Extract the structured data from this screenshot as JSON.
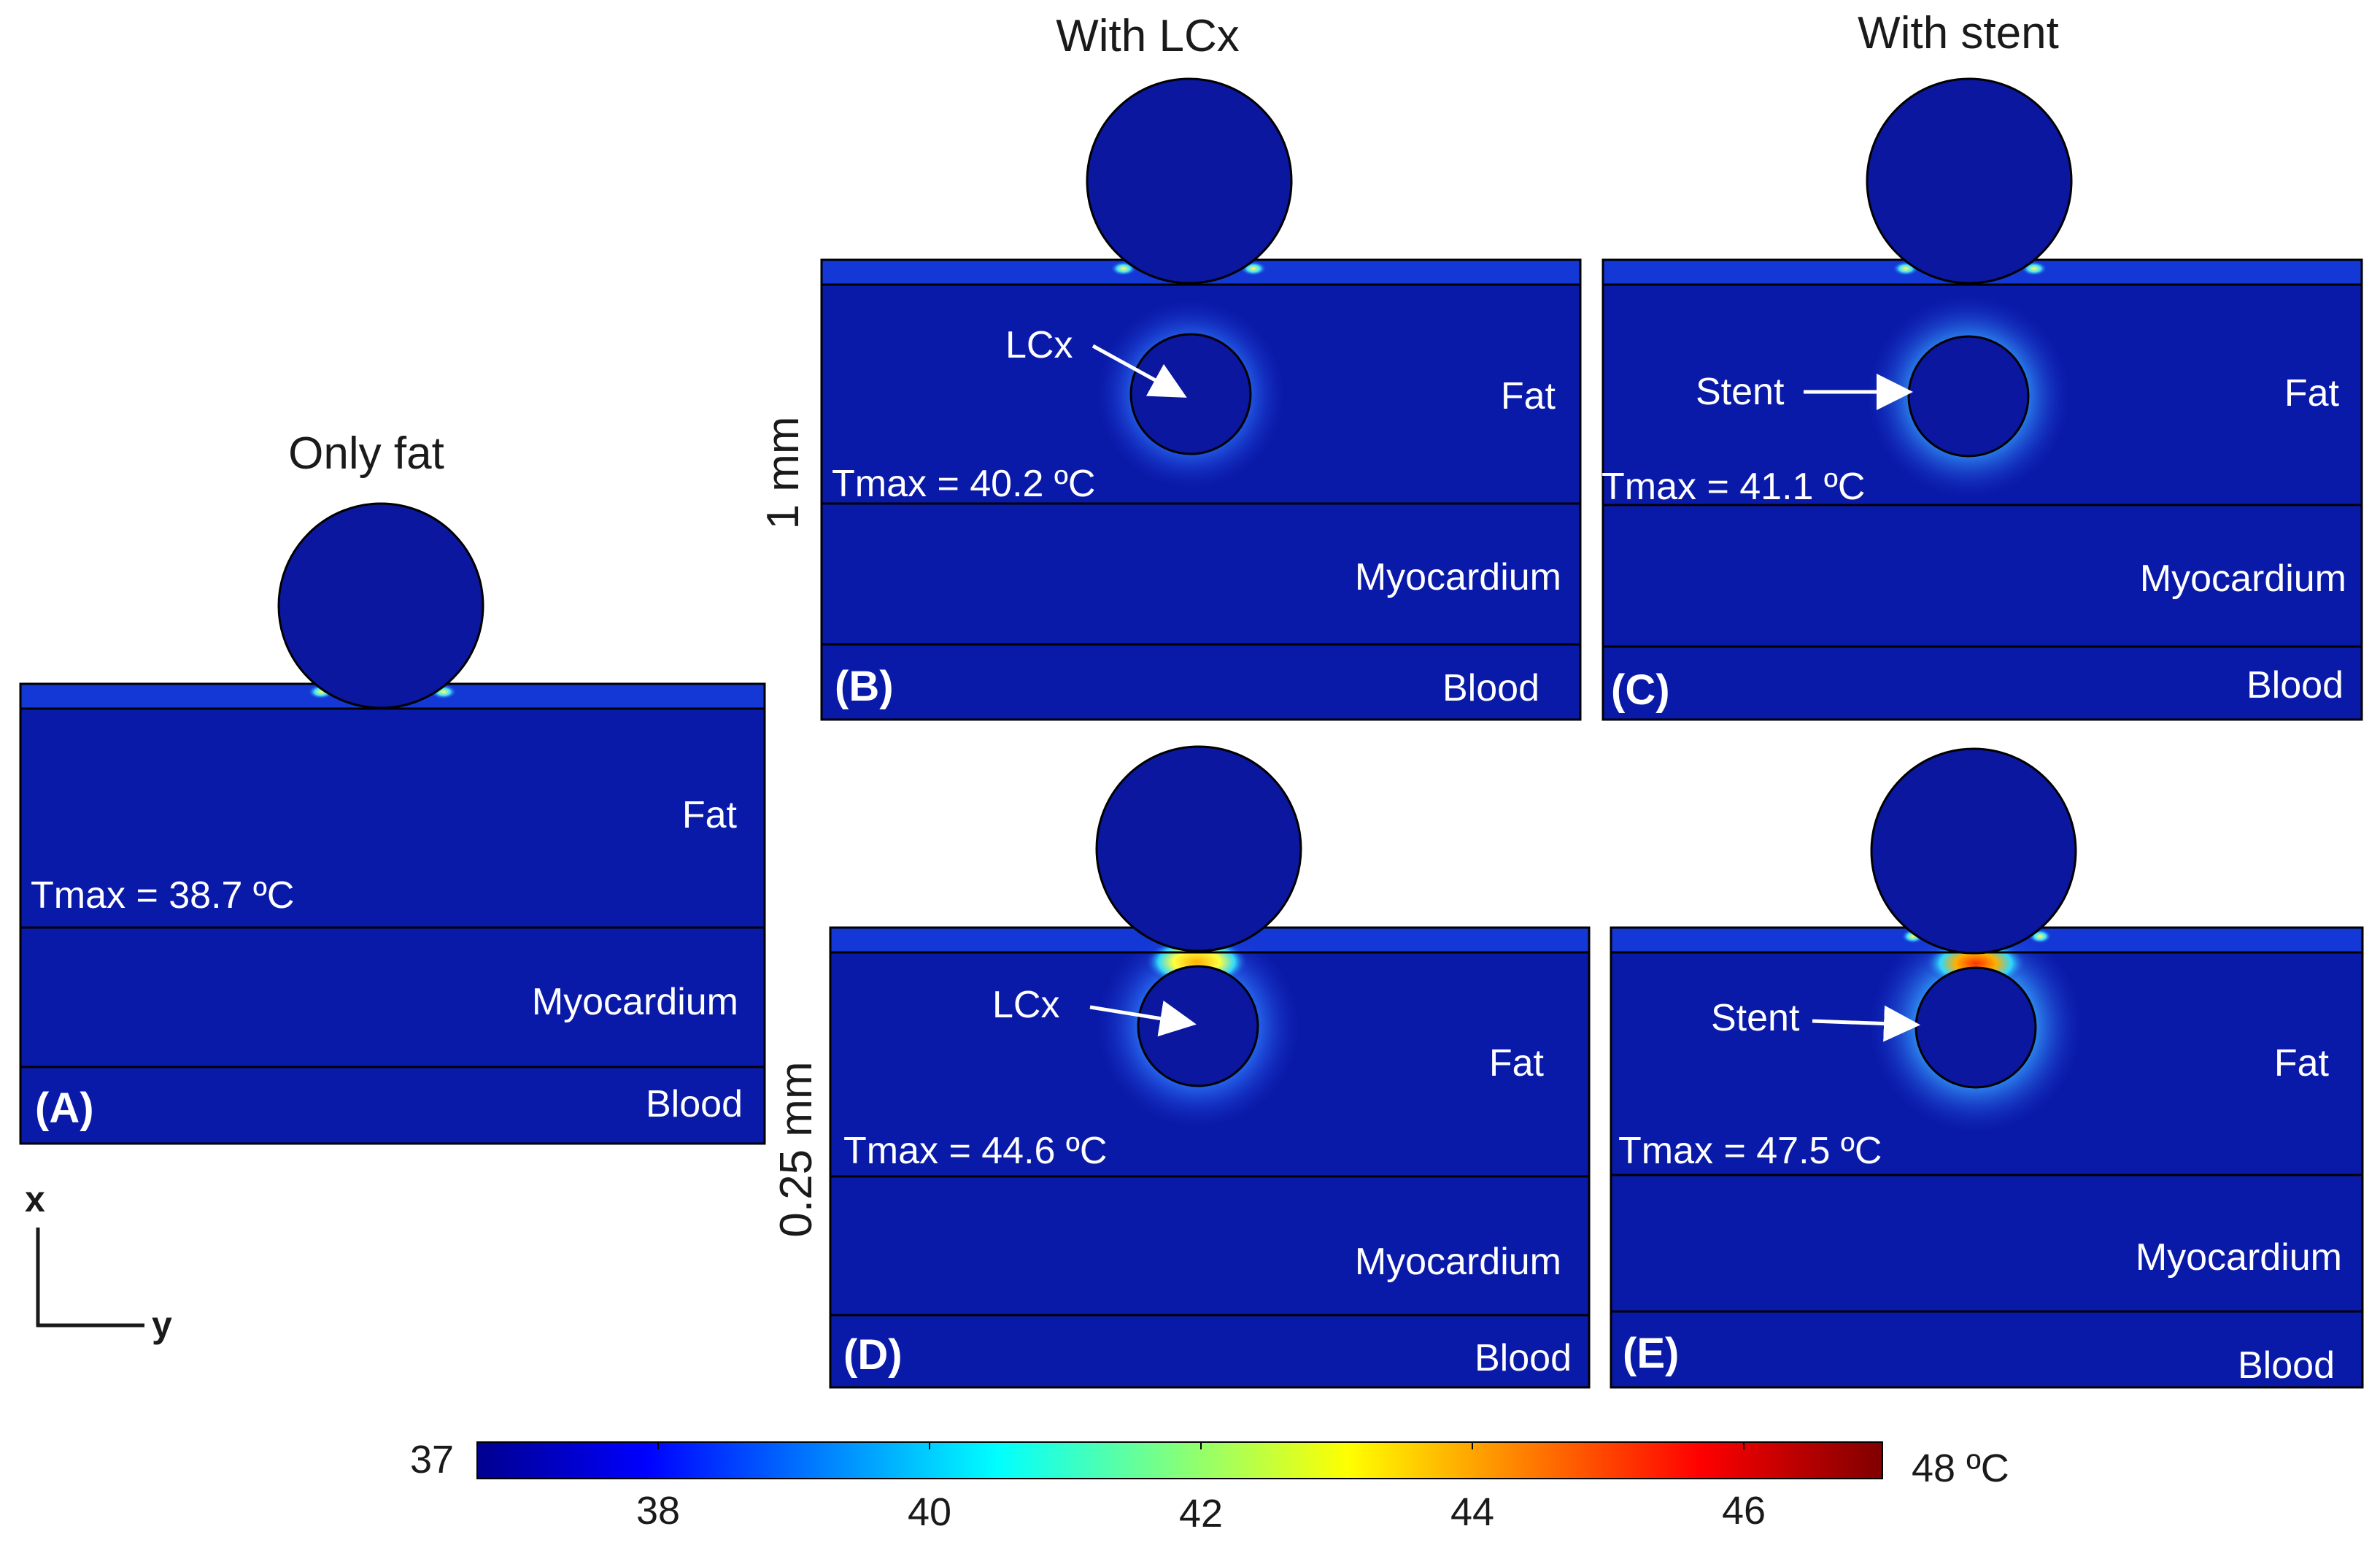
{
  "column_titles": {
    "only_fat": "Only fat",
    "with_lcx": "With LCx",
    "with_stent": "With stent"
  },
  "row_labels": {
    "top": "1 mm",
    "bottom": "0.25 mm"
  },
  "panels": {
    "A": {
      "label": "(A)",
      "tmax": "Tmax = 38.7 ºC",
      "tmax_c": 38.7,
      "fat": "Fat",
      "myocardium": "Myocardium",
      "blood": "Blood"
    },
    "B": {
      "label": "(B)",
      "tmax": "Tmax = 40.2 ºC",
      "tmax_c": 40.2,
      "fat": "Fat",
      "myocardium": "Myocardium",
      "blood": "Blood",
      "vessel_label": "LCx"
    },
    "C": {
      "label": "(C)",
      "tmax": "Tmax = 41.1 ºC",
      "tmax_c": 41.1,
      "fat": "Fat",
      "myocardium": "Myocardium",
      "blood": "Blood",
      "vessel_label": "Stent"
    },
    "D": {
      "label": "(D)",
      "tmax": "Tmax = 44.6 ºC",
      "tmax_c": 44.6,
      "fat": "Fat",
      "myocardium": "Myocardium",
      "blood": "Blood",
      "vessel_label": "LCx"
    },
    "E": {
      "label": "(E)",
      "tmax": "Tmax = 47.5 ºC",
      "tmax_c": 47.5,
      "fat": "Fat",
      "myocardium": "Myocardium",
      "blood": "Blood",
      "vessel_label": "Stent"
    }
  },
  "axes": {
    "x": "x",
    "y": "y"
  },
  "colorbar": {
    "min_label": "37",
    "max_label": "48 ºC",
    "ticks": [
      "38",
      "40",
      "42",
      "44",
      "46"
    ],
    "stops": [
      "#00008f",
      "#0000ff",
      "#00ffff",
      "#ffff00",
      "#ff0000",
      "#800000"
    ]
  },
  "colors": {
    "background_tissue": "#0a1aa8",
    "electrode": "#0a179e",
    "outline": "#000000"
  }
}
